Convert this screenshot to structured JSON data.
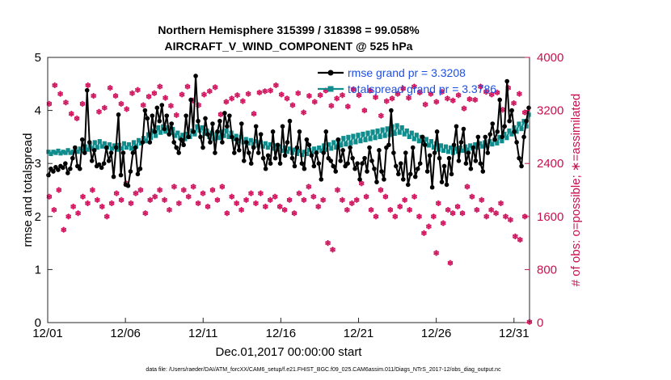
{
  "chart_data": {
    "type": "line",
    "title_line1": "Northern Hemisphere 315399 / 318398 = 99.058%",
    "title_line2": "AIRCRAFT_V_WIND_COMPONENT @ 525 hPa",
    "ylabel": "rmse and totalspread",
    "ylabel_right": "# of obs: o=possible; ∗=assimilated",
    "xlabel": "Dec.01,2017 00:00:00 start",
    "footer": "data file: /Users/raeder/DAI/ATM_forcXX/CAM6_setup/f.e21.FHIST_BGC.f09_025.CAM6assim.011/Diags_NTrS_2017-12/obs_diag_output.nc",
    "xlim": [
      0,
      31
    ],
    "ylim": [
      0,
      5
    ],
    "ylim_right": [
      0,
      4000
    ],
    "yticks": [
      "0",
      "1",
      "2",
      "3",
      "4",
      "5"
    ],
    "yticks_right": [
      "0",
      "800",
      "1600",
      "2400",
      "3200",
      "4000"
    ],
    "xticks": [
      {
        "pos": 0,
        "label": "12/01"
      },
      {
        "pos": 5,
        "label": "12/06"
      },
      {
        "pos": 10,
        "label": "12/11"
      },
      {
        "pos": 15,
        "label": "12/16"
      },
      {
        "pos": 20,
        "label": "12/21"
      },
      {
        "pos": 25,
        "label": "12/26"
      },
      {
        "pos": 30,
        "label": "12/31"
      }
    ],
    "legend": [
      {
        "name": "rmse grand pr = 3.3208",
        "color": "#000000"
      },
      {
        "name": "totalspread grand pr = 3.3786",
        "color": "#118c8c"
      }
    ],
    "rmse": [
      2.78,
      2.9,
      2.85,
      2.93,
      2.88,
      2.95,
      2.92,
      3.0,
      2.82,
      2.9,
      3.1,
      3.3,
      2.95,
      2.9,
      3.45,
      3.2,
      4.38,
      3.4,
      3.05,
      3.25,
      2.95,
      2.98,
      2.92,
      3.0,
      3.3,
      3.05,
      3.2,
      2.75,
      3.3,
      3.92,
      2.78,
      3.2,
      2.6,
      2.58,
      2.85,
      3.2,
      3.3,
      2.8,
      2.9,
      3.4,
      4.0,
      3.85,
      3.4,
      3.9,
      3.6,
      4.05,
      3.8,
      4.1,
      3.65,
      3.9,
      3.55,
      3.75,
      3.4,
      3.3,
      3.2,
      3.45,
      3.35,
      3.9,
      3.5,
      4.2,
      3.6,
      4.65,
      3.8,
      3.5,
      3.3,
      3.85,
      3.55,
      3.4,
      3.75,
      3.2,
      3.6,
      3.8,
      3.4,
      3.95,
      3.7,
      3.9,
      3.5,
      3.2,
      3.45,
      3.25,
      3.75,
      3.05,
      3.4,
      3.2,
      3.0,
      3.3,
      3.7,
      3.2,
      3.55,
      3.1,
      2.9,
      3.15,
      3.0,
      3.6,
      3.1,
      3.35,
      3.0,
      3.7,
      3.15,
      3.4,
      3.8,
      3.1,
      2.95,
      3.3,
      3.6,
      3.0,
      2.9,
      3.45,
      3.35,
      3.15,
      2.95,
      3.2,
      3.0,
      2.7,
      3.2,
      3.6,
      3.1,
      3.05,
      2.95,
      2.85,
      3.45,
      3.05,
      3.25,
      2.95,
      3.0,
      3.3,
      3.1,
      2.9,
      3.0,
      2.7,
      3.0,
      3.1,
      2.85,
      3.3,
      3.05,
      2.9,
      2.65,
      3.25,
      2.85,
      2.7,
      3.3,
      3.35,
      4.0,
      3.2,
      2.95,
      2.8,
      3.0,
      2.7,
      3.2,
      2.6,
      2.8,
      3.3,
      2.75,
      2.9,
      3.0,
      3.5,
      3.35,
      2.85,
      3.15,
      2.55,
      3.2,
      3.6,
      3.1,
      2.65,
      2.95,
      2.6,
      3.1,
      2.8,
      3.35,
      3.7,
      3.05,
      3.4,
      3.65,
      3.0,
      3.2,
      2.9,
      3.3,
      3.05,
      3.5,
      3.0,
      2.85,
      3.5,
      3.2,
      3.55,
      3.75,
      3.45,
      3.6,
      4.2,
      3.5,
      3.7,
      4.55,
      3.8,
      4.0,
      3.6,
      3.4,
      3.1,
      2.95,
      3.5,
      3.8,
      4.05
    ],
    "totalspread": [
      3.22,
      3.18,
      3.22,
      3.2,
      3.24,
      3.19,
      3.22,
      3.2,
      3.25,
      3.2,
      3.22,
      3.25,
      3.22,
      3.28,
      3.24,
      3.32,
      3.26,
      3.34,
      3.28,
      3.4,
      3.3,
      3.42,
      3.32,
      3.38,
      3.3,
      3.36,
      3.28,
      3.34,
      3.26,
      3.35,
      3.28,
      3.38,
      3.3,
      3.36,
      3.28,
      3.4,
      3.32,
      3.44,
      3.38,
      3.48,
      3.42,
      3.55,
      3.48,
      3.62,
      3.52,
      3.68,
      3.58,
      3.7,
      3.6,
      3.68,
      3.58,
      3.65,
      3.52,
      3.58,
      3.48,
      3.54,
      3.46,
      3.56,
      3.5,
      3.62,
      3.55,
      3.7,
      3.62,
      3.68,
      3.56,
      3.62,
      3.5,
      3.58,
      3.46,
      3.55,
      3.48,
      3.6,
      3.52,
      3.62,
      3.5,
      3.58,
      3.46,
      3.52,
      3.42,
      3.5,
      3.4,
      3.46,
      3.38,
      3.44,
      3.36,
      3.42,
      3.34,
      3.4,
      3.32,
      3.38,
      3.3,
      3.36,
      3.28,
      3.34,
      3.26,
      3.32,
      3.24,
      3.3,
      3.22,
      3.28,
      3.2,
      3.26,
      3.18,
      3.24,
      3.16,
      3.22,
      3.18,
      3.26,
      3.2,
      3.28,
      3.22,
      3.3,
      3.24,
      3.34,
      3.26,
      3.36,
      3.28,
      3.4,
      3.3,
      3.44,
      3.34,
      3.48,
      3.36,
      3.5,
      3.38,
      3.52,
      3.4,
      3.54,
      3.42,
      3.56,
      3.44,
      3.58,
      3.46,
      3.6,
      3.48,
      3.62,
      3.5,
      3.64,
      3.52,
      3.66,
      3.54,
      3.7,
      3.56,
      3.72,
      3.58,
      3.68,
      3.55,
      3.62,
      3.5,
      3.58,
      3.46,
      3.54,
      3.42,
      3.5,
      3.38,
      3.46,
      3.34,
      3.42,
      3.3,
      3.38,
      3.26,
      3.34,
      3.24,
      3.32,
      3.22,
      3.3,
      3.2,
      3.28,
      3.22,
      3.3,
      3.24,
      3.32,
      3.26,
      3.34,
      3.28,
      3.36,
      3.3,
      3.38,
      3.32,
      3.4,
      3.34,
      3.42,
      3.36,
      3.45,
      3.38,
      3.5,
      3.42,
      3.56,
      3.48,
      3.62,
      3.55,
      3.68,
      3.6,
      3.75,
      3.65,
      3.8,
      3.7,
      3.92
    ],
    "obs_high": [
      3300,
      3580,
      3450,
      3320,
      3150,
      3080,
      3300,
      3580,
      3420,
      3180,
      3240,
      3540,
      3420,
      3300,
      3220,
      3460,
      3510,
      3280,
      3410,
      3460,
      3560,
      3390,
      3270,
      3130,
      3440,
      3560,
      3350,
      3280,
      3440,
      3490,
      3550,
      3140,
      3330,
      3380,
      3430,
      3340,
      3450,
      3150,
      3470,
      3490,
      3500,
      3580,
      3440,
      3380,
      3280,
      3460,
      3170,
      3420,
      3330,
      3430,
      3500,
      3270,
      3380,
      3430,
      3260,
      3520,
      3430,
      3200,
      3500,
      3400,
      3120,
      3340,
      3380,
      3450,
      3530,
      3390,
      3560,
      3470,
      3290,
      3450,
      3330,
      3480,
      3380,
      3350,
      3430,
      3230,
      3370,
      3360,
      3560,
      3480,
      3440,
      3470,
      3210,
      3540,
      3310,
      3450,
      3170
    ],
    "obs_low": [
      1900,
      1700,
      2000,
      1400,
      1600,
      1750,
      1650,
      1900,
      1800,
      2000,
      1850,
      1750,
      1600,
      1800,
      1950,
      1850,
      2100,
      1800,
      1950,
      2000,
      1650,
      1850,
      1900,
      2000,
      1850,
      1700,
      2050,
      1800,
      2000,
      1900,
      2050,
      1800,
      1950,
      1750,
      2000,
      1850,
      2050,
      1650,
      1900,
      1800,
      1700,
      1850,
      1950,
      1800,
      1950,
      1750,
      1850,
      1900,
      1750,
      1700,
      1850,
      1650,
      1950,
      1850,
      2050,
      1900,
      1750,
      1850,
      1200,
      1100,
      2000,
      1850,
      1700,
      1800,
      1850,
      2100,
      1900,
      1700,
      1600,
      2000,
      1900,
      1700,
      1600,
      1750,
      1850,
      1700,
      1900,
      1600,
      1350,
      1450,
      1600,
      1800,
      1500,
      1700,
      1650,
      1750,
      1650,
      2050,
      1900,
      1700,
      1850,
      1600,
      1700,
      1650,
      1800,
      1600,
      1550,
      1300,
      1250,
      1600
    ],
    "obs_outliers": [
      {
        "day": 25.0,
        "count": 1050
      },
      {
        "day": 25.9,
        "count": 900
      },
      {
        "day": 31.0,
        "count": 10
      }
    ]
  }
}
